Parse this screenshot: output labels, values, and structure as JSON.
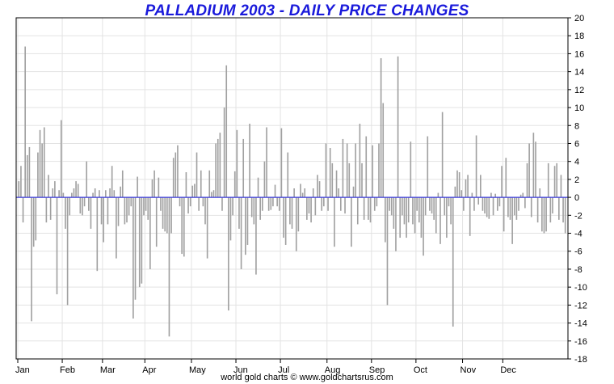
{
  "colors": {
    "title": "#1a1adb",
    "bar": "#a0a0a0",
    "grid": "#e3e3e3",
    "zero_line": "#3b3bd9",
    "axis": "#000000",
    "background": "#ffffff"
  },
  "footer": "world gold charts © www.goldchartsrus.com",
  "chart_data": {
    "type": "bar",
    "title": "PALLADIUM 2003 - DAILY PRICE CHANGES",
    "xlabel": "",
    "ylabel": "",
    "ylim": [
      -18,
      20
    ],
    "y_ticks": [
      20,
      18,
      16,
      14,
      12,
      10,
      8,
      6,
      4,
      2,
      0,
      -2,
      -4,
      -6,
      -8,
      -10,
      -12,
      -14,
      -16,
      -18
    ],
    "y_axis_position": "right",
    "x_tick_labels": [
      "Jan",
      "Feb",
      "Mar",
      "Apr",
      "May",
      "Jun",
      "Jul",
      "Aug",
      "Sep",
      "Oct",
      "Nov",
      "Dec"
    ],
    "x_tick_indices": [
      0,
      21,
      40,
      60,
      82,
      103,
      124,
      146,
      167,
      188,
      210,
      229
    ],
    "grid": true,
    "legend": "none",
    "series": [
      {
        "values": [
          1.8,
          3.5,
          -2.8,
          16.8,
          4.7,
          5.6,
          -13.8,
          -5.5,
          -4.8,
          5.0,
          7.5,
          6.0,
          7.8,
          -2.8,
          2.5,
          -2.5,
          1.0,
          1.8,
          -10.8,
          0.8,
          8.6,
          0.5,
          -3.5,
          -12.0,
          -2.0,
          0.5,
          1.0,
          1.8,
          1.5,
          -1.8,
          -2.0,
          -1.0,
          4.0,
          -1.5,
          -3.5,
          0.5,
          1.0,
          -8.2,
          0.8,
          -3.0,
          -5.0,
          0.8,
          -3.0,
          1.0,
          3.5,
          0.8,
          -6.8,
          -3.2,
          1.2,
          3.0,
          -3.0,
          -2.8,
          -2.0,
          -1.0,
          -13.5,
          -11.4,
          2.3,
          -10.0,
          -9.6,
          -2.0,
          -1.5,
          -2.5,
          -8.0,
          2.0,
          3.0,
          -5.5,
          2.2,
          -1.5,
          -3.5,
          -3.8,
          -4.0,
          -15.5,
          -4.0,
          4.4,
          5.0,
          5.8,
          -1.0,
          -6.3,
          -6.6,
          2.8,
          -1.8,
          -1.0,
          1.3,
          1.5,
          5.0,
          -1.5,
          3.0,
          -1.0,
          -3.0,
          -6.8,
          3.0,
          0.6,
          0.8,
          6.0,
          6.5,
          7.2,
          -1.5,
          10.0,
          14.7,
          -12.6,
          -4.8,
          -2.0,
          2.9,
          7.5,
          -3.5,
          -8.0,
          6.5,
          -6.4,
          -5.3,
          8.2,
          -2.2,
          -3.0,
          -8.6,
          2.2,
          -2.5,
          -1.5,
          4.0,
          7.8,
          -1.5,
          -1.4,
          -1.0,
          1.4,
          -1.0,
          -1.5,
          7.7,
          -4.5,
          -5.3,
          5.0,
          -3.0,
          -3.5,
          1.0,
          -6.0,
          -3.8,
          1.5,
          0.5,
          1.0,
          -2.5,
          -1.8,
          -2.8,
          1.0,
          -2.0,
          2.5,
          1.8,
          -1.5,
          -1.0,
          6.0,
          -1.5,
          5.5,
          3.8,
          -5.5,
          3.0,
          1.0,
          -1.5,
          6.5,
          -1.8,
          6.0,
          3.8,
          -5.5,
          1.2,
          6.0,
          -3.0,
          8.2,
          3.8,
          -2.5,
          6.8,
          -2.5,
          -2.8,
          5.8,
          -1.5,
          -1.0,
          6.0,
          15.5,
          10.5,
          -5.0,
          -12.0,
          -1.5,
          -2.0,
          -3.5,
          -6.0,
          15.7,
          -4.5,
          -2.0,
          -3.0,
          -4.5,
          -2.8,
          6.2,
          -3.0,
          -4.0,
          -1.5,
          -2.8,
          -4.5,
          -6.5,
          -2.0,
          6.8,
          -1.5,
          -1.8,
          -2.5,
          -4.0,
          0.5,
          -5.2,
          9.5,
          -2.0,
          -4.5,
          -1.0,
          -3.0,
          -14.4,
          1.2,
          3.0,
          2.8,
          0.8,
          -1.5,
          2.0,
          2.5,
          -4.3,
          0.5,
          -1.5,
          6.9,
          -0.8,
          2.5,
          -1.5,
          -1.8,
          -2.2,
          -2.4,
          0.5,
          -2.0,
          0.4,
          -1.5,
          -1.0,
          3.5,
          -3.8,
          4.4,
          -2.2,
          -2.5,
          -5.2,
          -2.0,
          -2.5,
          -1.5,
          0.3,
          0.5,
          -1.2,
          3.8,
          6.0,
          -2.2,
          7.2,
          6.2,
          -2.8,
          1.0,
          -3.8,
          -4.0,
          -3.8,
          3.8,
          -2.8,
          -1.8,
          3.5,
          3.8,
          -2.5,
          2.5,
          -2.8,
          -4.0
        ]
      }
    ]
  }
}
